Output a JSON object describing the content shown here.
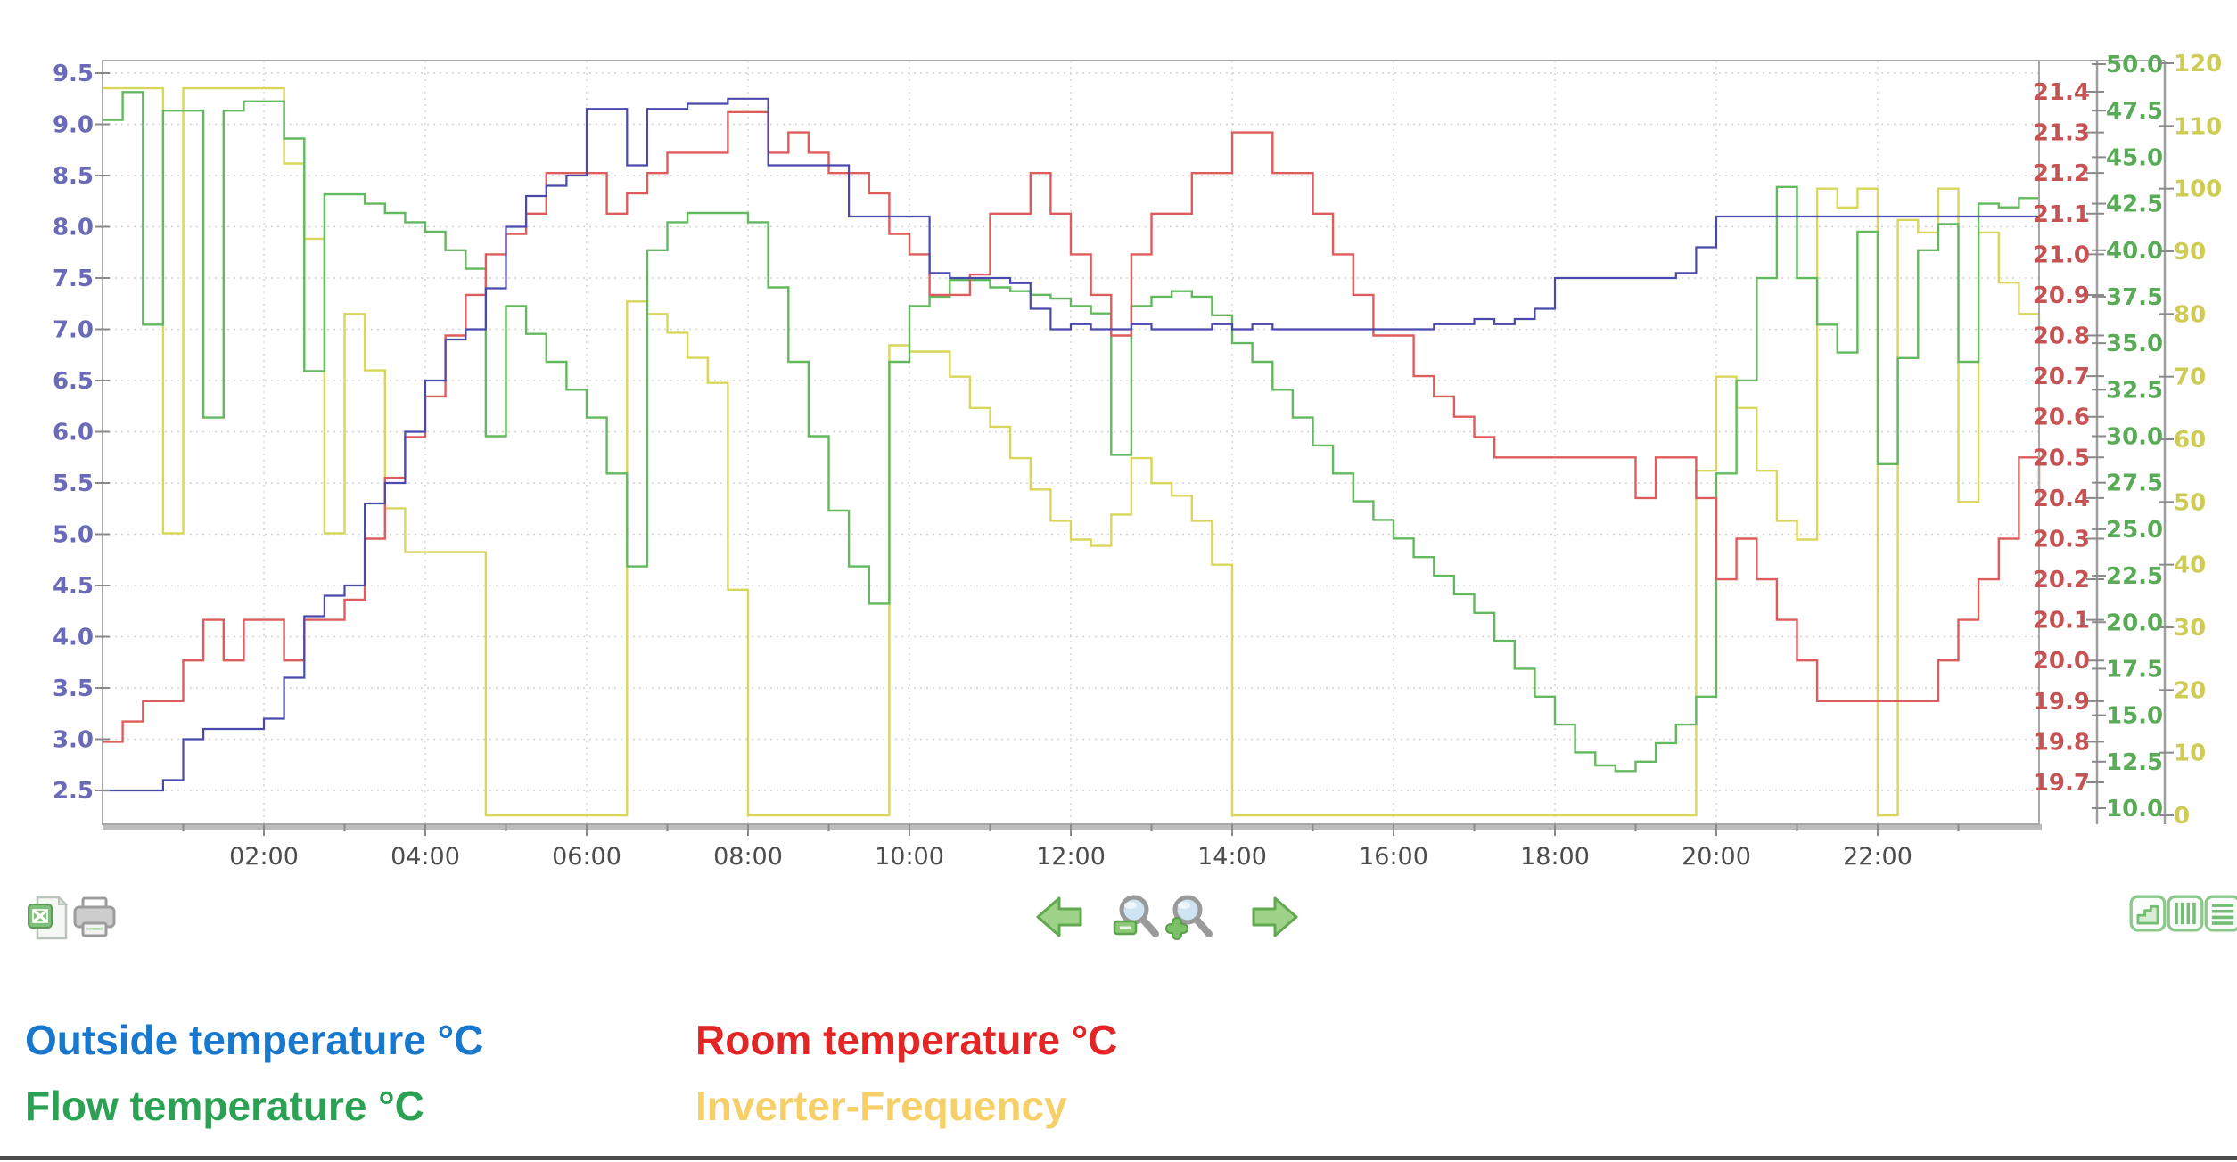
{
  "chart_data": {
    "type": "line",
    "title": "",
    "subtitle": "",
    "grid": {
      "horizontal": true,
      "vertical": true,
      "style": "dotted"
    },
    "x_axis": {
      "kind": "time",
      "start": "00:00",
      "end": "24:00",
      "step_minutes": 15,
      "tick_labels": [
        "02:00",
        "04:00",
        "06:00",
        "08:00",
        "10:00",
        "12:00",
        "14:00",
        "16:00",
        "18:00",
        "20:00",
        "22:00"
      ],
      "tick_hours": [
        2,
        4,
        6,
        8,
        10,
        12,
        14,
        16,
        18,
        20,
        22
      ],
      "label_color": "#4d4d4d"
    },
    "axes": [
      {
        "id": "outside",
        "position": "left",
        "color": "#6a6ab8",
        "min": 2.5,
        "max": 9.5,
        "tick_labels": [
          "9.5",
          "9.0",
          "8.5",
          "8.0",
          "7.5",
          "7.0",
          "6.5",
          "6.0",
          "5.5",
          "5.0",
          "4.5",
          "4.0",
          "3.5",
          "3.0",
          "2.5"
        ]
      },
      {
        "id": "room",
        "position": "right-inner",
        "color": "#c65353",
        "min": 19.7,
        "max": 21.4,
        "tick_labels": [
          "21.4",
          "21.3",
          "21.2",
          "21.1",
          "21.0",
          "20.9",
          "20.8",
          "20.7",
          "20.6",
          "20.5",
          "20.4",
          "20.3",
          "20.2",
          "20.1",
          "20.0",
          "19.9",
          "19.8",
          "19.7"
        ]
      },
      {
        "id": "flow",
        "position": "right-middle",
        "color": "#5aab57",
        "min": 10.0,
        "max": 50.0,
        "tick_labels": [
          "50.0",
          "47.5",
          "45.0",
          "42.5",
          "40.0",
          "37.5",
          "35.0",
          "32.5",
          "30.0",
          "27.5",
          "25.0",
          "22.5",
          "20.0",
          "17.5",
          "15.0",
          "12.5",
          "10.0"
        ]
      },
      {
        "id": "inverter",
        "position": "right-outer",
        "color": "#cfcc55",
        "min": 0,
        "max": 120,
        "tick_labels": [
          "120",
          "110",
          "100",
          "90",
          "80",
          "70",
          "60",
          "50",
          "40",
          "30",
          "20",
          "10",
          "0"
        ]
      }
    ],
    "series": [
      {
        "name": "Outside temperature °C",
        "axis": "outside",
        "color": "#4a4aae",
        "width": 2.2,
        "values": [
          2.5,
          2.5,
          2.5,
          2.6,
          3.0,
          3.1,
          3.1,
          3.1,
          3.2,
          3.6,
          4.2,
          4.4,
          4.5,
          5.3,
          5.5,
          6.0,
          6.5,
          6.9,
          7.0,
          7.4,
          8.0,
          8.3,
          8.4,
          8.5,
          9.15,
          9.15,
          8.6,
          9.15,
          9.15,
          9.2,
          9.2,
          9.25,
          9.25,
          8.6,
          8.6,
          8.6,
          8.6,
          8.1,
          8.1,
          8.1,
          8.1,
          7.55,
          7.5,
          7.5,
          7.5,
          7.45,
          7.2,
          7.0,
          7.05,
          7.0,
          7.0,
          7.05,
          7.0,
          7.0,
          7.0,
          7.05,
          7.0,
          7.05,
          7.0,
          7.0,
          7.0,
          7.0,
          7.0,
          7.0,
          7.0,
          7.0,
          7.05,
          7.05,
          7.1,
          7.05,
          7.1,
          7.2,
          7.5,
          7.5,
          7.5,
          7.5,
          7.5,
          7.5,
          7.55,
          7.8,
          8.1,
          8.1,
          8.1,
          8.1,
          8.1,
          8.1,
          8.1,
          8.1,
          8.1,
          8.1,
          8.1,
          8.1,
          8.1,
          8.1,
          8.1,
          8.1,
          8.1
        ]
      },
      {
        "name": "Room temperature °C",
        "axis": "room",
        "color": "#df5c5c",
        "width": 2.4,
        "values": [
          19.8,
          19.85,
          19.9,
          19.9,
          20.0,
          20.1,
          20.0,
          20.1,
          20.1,
          20.0,
          20.1,
          20.1,
          20.15,
          20.3,
          20.45,
          20.55,
          20.65,
          20.8,
          20.9,
          21.0,
          21.05,
          21.1,
          21.2,
          21.2,
          21.2,
          21.1,
          21.15,
          21.2,
          21.25,
          21.25,
          21.25,
          21.35,
          21.35,
          21.25,
          21.3,
          21.25,
          21.2,
          21.2,
          21.15,
          21.05,
          21.0,
          20.9,
          20.9,
          20.95,
          21.1,
          21.1,
          21.2,
          21.1,
          21.0,
          20.9,
          20.8,
          21.0,
          21.1,
          21.1,
          21.2,
          21.2,
          21.3,
          21.3,
          21.2,
          21.2,
          21.1,
          21.0,
          20.9,
          20.8,
          20.8,
          20.7,
          20.65,
          20.6,
          20.55,
          20.5,
          20.5,
          20.5,
          20.5,
          20.5,
          20.5,
          20.5,
          20.4,
          20.5,
          20.5,
          20.4,
          20.2,
          20.3,
          20.2,
          20.1,
          20.0,
          19.9,
          19.9,
          19.9,
          19.9,
          19.9,
          19.9,
          20.0,
          20.1,
          20.2,
          20.3,
          20.5,
          20.4
        ]
      },
      {
        "name": "Flow temperature °C",
        "axis": "flow",
        "color": "#62b95e",
        "width": 2.4,
        "values": [
          47.0,
          48.5,
          36.0,
          47.5,
          47.5,
          31.0,
          47.5,
          48.0,
          48.0,
          46.0,
          33.5,
          43.0,
          43.0,
          42.5,
          42.0,
          41.5,
          41.0,
          40.0,
          39.0,
          30.0,
          37.0,
          35.5,
          34.0,
          32.5,
          31.0,
          28.0,
          23.0,
          40.0,
          41.5,
          42.0,
          42.0,
          42.0,
          41.5,
          38.0,
          34.0,
          30.0,
          26.0,
          23.0,
          21.0,
          34.0,
          37.0,
          37.5,
          38.4,
          38.4,
          38.0,
          37.8,
          37.6,
          37.4,
          37.0,
          36.6,
          29.0,
          37.0,
          37.5,
          37.8,
          37.5,
          36.5,
          35.0,
          34.0,
          32.5,
          31.0,
          29.5,
          28.0,
          26.5,
          25.5,
          24.5,
          23.5,
          22.5,
          21.5,
          20.5,
          19.0,
          17.5,
          16.0,
          14.5,
          13.0,
          12.3,
          12.0,
          12.5,
          13.5,
          14.5,
          16.0,
          28.0,
          33.0,
          38.5,
          43.4,
          38.5,
          36.0,
          34.5,
          41.0,
          28.5,
          34.2,
          40.0,
          41.4,
          34.0,
          42.5,
          42.3,
          42.8,
          42.8
        ]
      },
      {
        "name": "Inverter-Frequency",
        "axis": "inverter",
        "color": "#d9d75b",
        "width": 2.4,
        "values": [
          116,
          116,
          116,
          45,
          116,
          116,
          116,
          116,
          116,
          104,
          92,
          45,
          80,
          71,
          49,
          42,
          42,
          42,
          42,
          0,
          0,
          0,
          0,
          0,
          0,
          0,
          82,
          80,
          77,
          73,
          69,
          36,
          0,
          0,
          0,
          0,
          0,
          0,
          0,
          75,
          74,
          74,
          70,
          65,
          62,
          57,
          52,
          47,
          44,
          43,
          48,
          57,
          53,
          51,
          47,
          40,
          0,
          0,
          0,
          0,
          0,
          0,
          0,
          0,
          0,
          0,
          0,
          0,
          0,
          0,
          0,
          0,
          0,
          0,
          0,
          0,
          0,
          0,
          0,
          55,
          70,
          65,
          55,
          47,
          44,
          100,
          97,
          100,
          0,
          95,
          93,
          100,
          50,
          93,
          85,
          80,
          79
        ]
      }
    ]
  },
  "toolbar": {
    "left": [
      {
        "id": "export-excel",
        "icon": "excel-file-icon"
      },
      {
        "id": "print",
        "icon": "printer-icon"
      }
    ],
    "center": [
      {
        "id": "pan-left",
        "icon": "arrow-left-icon"
      },
      {
        "id": "zoom-out",
        "icon": "magnifier-minus-icon"
      },
      {
        "id": "zoom-in",
        "icon": "magnifier-plus-icon"
      },
      {
        "id": "pan-right",
        "icon": "arrow-right-icon"
      }
    ],
    "right": [
      {
        "id": "chart-view",
        "icon": "step-chart-icon"
      },
      {
        "id": "vertical-grid",
        "icon": "vertical-bars-icon"
      },
      {
        "id": "table-view",
        "icon": "horizontal-lines-icon"
      }
    ]
  },
  "legend": {
    "items": [
      {
        "label": "Outside temperature °C",
        "color": "#1878cd"
      },
      {
        "label": "Room temperature °C",
        "color": "#e32525"
      },
      {
        "label": "Flow temperature °C",
        "color": "#2aa153"
      },
      {
        "label": "Inverter-Frequency",
        "color": "#f6cf66"
      }
    ]
  },
  "colors": {
    "grid": "#d2d2d2",
    "frame": "#a8a8a8",
    "frame_bottom": "#bcbcbc",
    "tick": "#8a8a8a",
    "icon_green": "#7cc47c",
    "icon_green_dark": "#5aa44e",
    "icon_gray": "#a9a9a9",
    "divider": "#4d4d4d"
  }
}
